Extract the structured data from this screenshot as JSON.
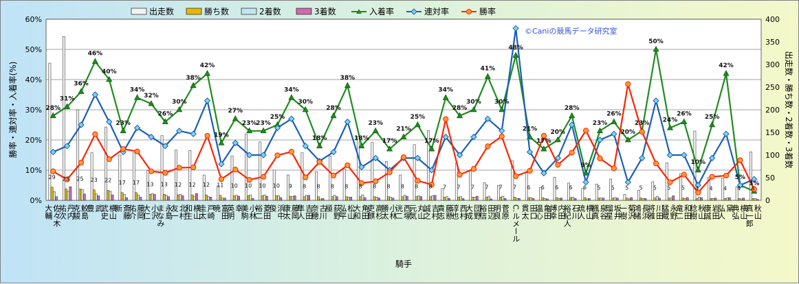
{
  "chart_data": {
    "type": "bar",
    "title": "",
    "xlabel": "騎手",
    "ylabel_left": "勝率・連対率・入着率(%)",
    "ylabel_right": "出走数・勝ち数・2着数・3着数",
    "watermark": "©Caniの競馬データ研究室",
    "ylim_left": [
      0,
      60
    ],
    "ylim_right": [
      0,
      400
    ],
    "yticks_left": [
      "0%",
      "10%",
      "20%",
      "30%",
      "40%",
      "50%",
      "60%"
    ],
    "yticks_right": [
      "0",
      "50",
      "100",
      "150",
      "200",
      "250",
      "300",
      "350",
      "400"
    ],
    "grid": true,
    "legend_position": "top",
    "colors": {
      "starts": "#f2f2f2",
      "wins": "#e6b800",
      "second": "#c4e4ee",
      "third": "#d06aa8",
      "place_rate": "#1e8c1e",
      "top2_rate": "#1a5fb4",
      "win_rate": "#ff2200"
    },
    "legend": [
      {
        "name": "出走数",
        "kind": "bar",
        "color": "#f2f2f2"
      },
      {
        "name": "勝ち数",
        "kind": "bar",
        "color": "#e6b800"
      },
      {
        "name": "2着数",
        "kind": "bar",
        "color": "#c4e4ee"
      },
      {
        "name": "3着数",
        "kind": "bar",
        "color": "#d06aa8"
      },
      {
        "name": "入着率",
        "kind": "line",
        "color": "#1e8c1e",
        "marker": "triangle"
      },
      {
        "name": "連対率",
        "kind": "line",
        "color": "#1a5fb4",
        "marker": "diamond"
      },
      {
        "name": "勝率",
        "kind": "line",
        "color": "#ff2200",
        "marker": "circle"
      }
    ],
    "categories": [
      "佐々木 大輔",
      "丹内 祐次",
      "鮫島 克駿",
      "武 豊",
      "横山 武史",
      "斎藤 新",
      "藤岡 佑介",
      "小沢 大仁",
      "永島 まなみ",
      "北村 友一",
      "横山 和生",
      "戸崎 圭太",
      "富田 暁",
      "幸 英明",
      "小林 美駒",
      "菱田 裕二",
      "浜中 俊",
      "藤岡 康太",
      "吉田 隼人",
      "古川 奈穂",
      "荻野 極",
      "松山 弘平",
      "角田 大和",
      "高杉 吏麒",
      "小林 勝太",
      "西塚 洸二",
      "丸山 元気",
      "吉村 誠之",
      "藤懸 貴志",
      "西村 淳也",
      "団野 大成",
      "田辺 裕信",
      "菅原 明良",
      "C.ルメール",
      "田口 貫太",
      "亀田 温心",
      "内田 博幸",
      "石川 裕紀人",
      "横山 琉人",
      "泉谷 楓真",
      "坂井 瑠星",
      "菊沢 一樹",
      "長浜 鴻緒",
      "川田 将雅",
      "永野 猛蔵",
      "和田 竜二",
      "秋山 稔樹",
      "岩田 康誠",
      "黛 弘人",
      "横山 典弘",
      "秋山 真一郎"
    ],
    "series": [
      {
        "name": "出走数",
        "values": [
          303,
          362,
          200,
          105,
          162,
          100,
          105,
          66,
          143,
          111,
          110,
          56,
          32,
          98,
          146,
          129,
          67,
          56,
          105,
          63,
          98,
          69,
          141,
          128,
          86,
          56,
          123,
          154,
          26,
          82,
          67,
          39,
          33,
          87,
          61,
          28,
          51,
          38,
          26,
          36,
          47,
          13,
          22,
          41,
          83,
          59,
          153,
          51,
          49,
          30,
          107
        ]
      },
      {
        "name": "勝ち数",
        "values": [
          29,
          25,
          25,
          23,
          22,
          17,
          17,
          13,
          13,
          12,
          12,
          12,
          11,
          10,
          10,
          10,
          10,
          9,
          8,
          8,
          8,
          8,
          8,
          8,
          8,
          8,
          8,
          8,
          7,
          7,
          7,
          7,
          7,
          7,
          6,
          6,
          6,
          6,
          6,
          5,
          5,
          5,
          5,
          5,
          5,
          5,
          4,
          4,
          4,
          4,
          4
        ]
      },
      {
        "name": "2着数",
        "values": [
          19,
          20,
          24,
          14,
          20,
          13,
          12,
          15,
          11,
          13,
          9,
          8,
          5,
          11,
          12,
          12,
          10,
          8,
          11,
          3,
          11,
          7,
          12,
          7,
          7,
          11,
          10,
          10,
          8,
          8,
          7,
          9,
          9,
          4,
          6,
          4,
          4,
          7,
          3,
          5,
          6,
          3,
          4,
          9,
          5,
          4,
          7,
          4,
          5,
          3,
          4
        ]
      },
      {
        "name": "3着数",
        "values": [
          8,
          30,
          14,
          10,
          12,
          6,
          7,
          13,
          8,
          10,
          15,
          7,
          5,
          9,
          4,
          9,
          6,
          10,
          11,
          4,
          8,
          7,
          6,
          5,
          5,
          9,
          8,
          11,
          4,
          4,
          9,
          3,
          4,
          4,
          4,
          3,
          5,
          4,
          4,
          5,
          5,
          6,
          4,
          5,
          10,
          6,
          6,
          5,
          6,
          5,
          2
        ]
      },
      {
        "name": "入着率",
        "values": [
          28,
          31,
          36,
          46,
          40,
          23,
          34,
          32,
          26,
          30,
          38,
          42,
          19,
          27,
          23,
          23,
          25,
          34,
          30,
          18,
          28,
          38,
          18,
          23,
          17,
          21,
          25,
          17,
          34,
          28,
          30,
          41,
          30,
          48,
          21,
          17,
          20,
          28,
          9,
          23,
          26,
          20,
          23,
          50,
          24,
          26,
          10,
          25,
          42,
          5,
          3
        ]
      },
      {
        "name": "連対率",
        "values": [
          16,
          18,
          25,
          35,
          26,
          16,
          24,
          21,
          18,
          23,
          22,
          33,
          12,
          19,
          15,
          15,
          24,
          27,
          18,
          13,
          16,
          26,
          11,
          14,
          10,
          14,
          14,
          10,
          21,
          15,
          21,
          27,
          23,
          57,
          16,
          9,
          14,
          25,
          6,
          20,
          22,
          6,
          14,
          33,
          15,
          15,
          5,
          14,
          22,
          5,
          7
        ]
      },
      {
        "name": "勝率",
        "values": [
          9.6,
          6.9,
          12.5,
          21.9,
          13.6,
          17,
          16.2,
          9.6,
          9.1,
          10.8,
          10.9,
          21.4,
          7,
          10.2,
          6.8,
          7.8,
          14.9,
          16.1,
          7.6,
          12.7,
          8.2,
          11.6,
          5.7,
          6.3,
          9.3,
          14.3,
          6.5,
          5.2,
          26.9,
          8.5,
          10.4,
          17.9,
          21.2,
          8,
          9.8,
          21.4,
          11.8,
          15.8,
          23.1,
          13.9,
          10.6,
          38.5,
          22.7,
          12.2,
          6,
          8.5,
          2.6,
          7.8,
          8.2,
          13.3,
          3.7
        ]
      }
    ],
    "data_labels_place_rate": [
      "28%",
      "31%",
      "36%",
      "46%",
      "40%",
      "23%",
      "34%",
      "32%",
      "26%",
      "30%",
      "38%",
      "42%",
      "19%",
      "27%",
      "23%",
      "23%",
      "25%",
      "34%",
      "30%",
      "18%",
      "28%",
      "38%",
      "18%",
      "23%",
      "17%",
      "21%",
      "25%",
      "17%",
      "34%",
      "28%",
      "30%",
      "41%",
      "30%",
      "48%",
      "21%",
      "17%",
      "20%",
      "28%",
      "9%",
      "23%",
      "26%",
      "20%",
      "23%",
      "50%",
      "24%",
      "26%",
      "10%",
      "25%",
      "42%",
      "5%",
      "3%"
    ],
    "data_labels_wins": [
      "29",
      "25",
      "25",
      "23",
      "22",
      "17",
      "17",
      "13",
      "13",
      "12",
      "12",
      "12",
      "11",
      "10",
      "10",
      "10",
      "10",
      "9",
      "8",
      "8",
      "8",
      "8",
      "8",
      "8",
      "8",
      "8",
      "8",
      "8",
      "7",
      "7",
      "7",
      "7",
      "7",
      "7",
      "6",
      "6",
      "6",
      "6",
      "6",
      "5",
      "5",
      "5",
      "5",
      "5",
      "5",
      "5",
      "4",
      "4",
      "4",
      "4",
      "4"
    ]
  }
}
